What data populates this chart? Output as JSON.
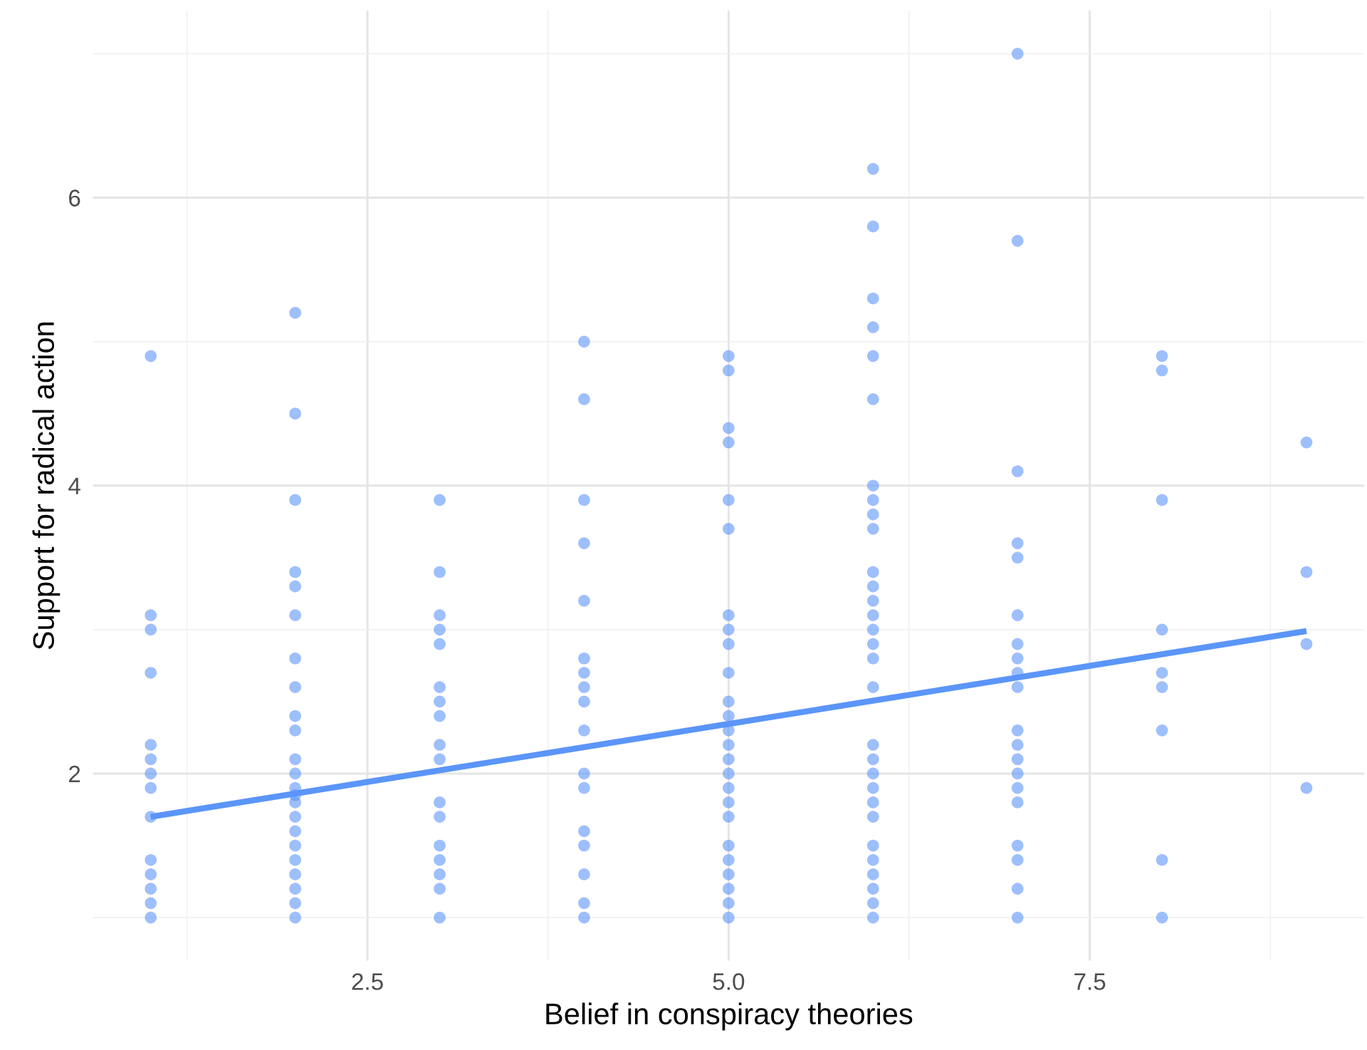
{
  "chart_data": {
    "type": "scatter",
    "xlabel": "Belief in conspiracy theories",
    "ylabel": "Support for radical action",
    "xlim": [
      0.6,
      9.4
    ],
    "ylim": [
      0.7,
      7.3
    ],
    "xticks": [
      2.5,
      {
        "value": 5,
        "label": "5.0"
      },
      7.5
    ],
    "yticks": [
      2,
      4,
      6
    ],
    "grid": true,
    "series": [
      {
        "color": "#5b95f9",
        "marker": "circle",
        "x": [
          1,
          1,
          1,
          1,
          1,
          1,
          1,
          1,
          1,
          1,
          1,
          1,
          1,
          1,
          2,
          2,
          2,
          2,
          2,
          2,
          2,
          2,
          2,
          2,
          2,
          2,
          2,
          2,
          2,
          2,
          2,
          2,
          2,
          2,
          2,
          2,
          2,
          3,
          3,
          3,
          3,
          3,
          3,
          3,
          3,
          3,
          3,
          3,
          3,
          3,
          3,
          3,
          3,
          3,
          4,
          4,
          4,
          4,
          4,
          4,
          4,
          4,
          4,
          4,
          4,
          4,
          4,
          4,
          4,
          4,
          4,
          5,
          5,
          5,
          5,
          5,
          5,
          5,
          5,
          5,
          5,
          5,
          5,
          5,
          5,
          5,
          5,
          5,
          5,
          5,
          5,
          5,
          5,
          5,
          5,
          5,
          6,
          6,
          6,
          6,
          6,
          6,
          6,
          6,
          6,
          6,
          6,
          6,
          6,
          6,
          6,
          6,
          6,
          6,
          6,
          6,
          6,
          6,
          6,
          6,
          6,
          6,
          6,
          6,
          6,
          6,
          7,
          7,
          7,
          7,
          7,
          7,
          7,
          7,
          7,
          7,
          7,
          7,
          7,
          7,
          7,
          7,
          7,
          7,
          7,
          7,
          8,
          8,
          8,
          8,
          8,
          8,
          8,
          8,
          8,
          9,
          9,
          9,
          9
        ],
        "values": [
          4.9,
          3.1,
          3.0,
          2.7,
          2.2,
          2.1,
          2.0,
          1.9,
          1.7,
          1.4,
          1.3,
          1.2,
          1.1,
          1.0,
          5.2,
          4.5,
          3.9,
          3.4,
          3.3,
          3.1,
          2.8,
          2.6,
          2.4,
          2.3,
          2.1,
          2.0,
          1.9,
          1.8,
          1.7,
          1.6,
          1.5,
          1.4,
          1.3,
          1.2,
          1.1,
          1.0,
          1.85,
          3.9,
          3.4,
          3.1,
          3.0,
          2.9,
          2.6,
          2.5,
          2.4,
          2.2,
          2.1,
          1.8,
          1.7,
          1.5,
          1.4,
          1.3,
          1.2,
          1.0,
          5.0,
          4.6,
          3.9,
          3.6,
          3.2,
          2.8,
          2.7,
          2.6,
          2.5,
          2.3,
          2.0,
          1.9,
          1.6,
          1.5,
          1.3,
          1.1,
          1.0,
          4.9,
          4.8,
          4.4,
          4.3,
          3.9,
          3.7,
          3.1,
          3.0,
          2.9,
          2.7,
          2.5,
          2.4,
          2.3,
          2.2,
          2.1,
          2.0,
          1.9,
          1.8,
          1.7,
          1.5,
          1.4,
          1.3,
          1.2,
          1.1,
          1.0,
          6.2,
          5.8,
          5.3,
          5.1,
          4.9,
          4.6,
          4.0,
          3.9,
          3.8,
          3.7,
          3.4,
          3.3,
          3.2,
          3.1,
          3.0,
          2.9,
          2.8,
          2.6,
          2.2,
          2.1,
          2.0,
          1.9,
          1.8,
          1.7,
          1.5,
          1.4,
          1.3,
          1.2,
          1.1,
          1.0,
          7.0,
          5.7,
          4.1,
          3.6,
          3.5,
          3.1,
          2.9,
          2.8,
          2.7,
          2.6,
          2.3,
          2.2,
          2.1,
          2.0,
          1.9,
          1.8,
          1.5,
          1.4,
          1.2,
          1.0,
          4.9,
          4.8,
          3.9,
          3.0,
          2.7,
          2.6,
          2.3,
          1.4,
          1.0,
          4.3,
          3.4,
          2.9,
          1.9
        ]
      },
      {
        "type": "line",
        "color": "#5b95f9",
        "x": [
          1,
          9
        ],
        "values": [
          1.7,
          2.99
        ]
      }
    ]
  }
}
